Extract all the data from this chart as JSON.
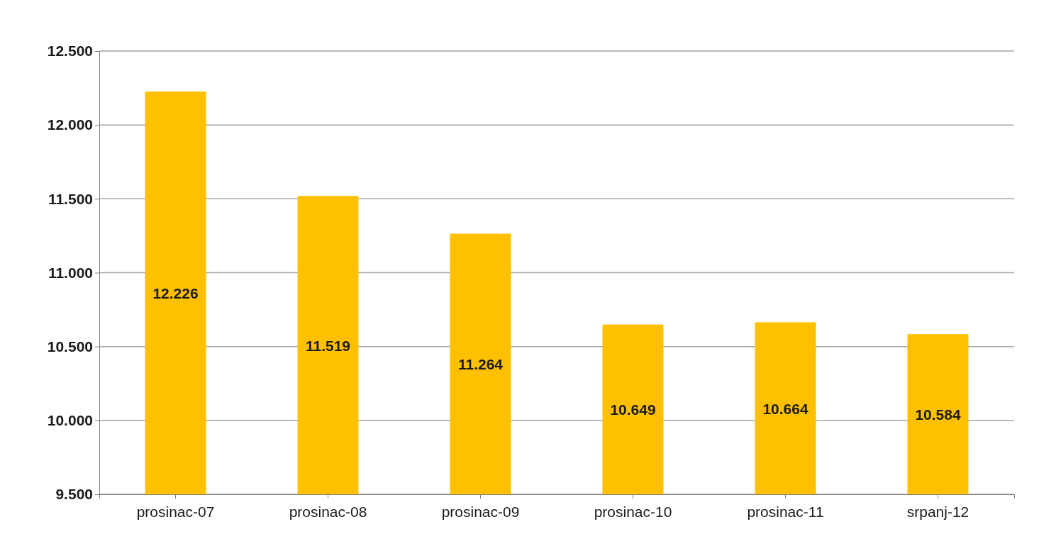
{
  "chart_data": {
    "type": "bar",
    "categories": [
      "prosinac-07",
      "prosinac-08",
      "prosinac-09",
      "prosinac-10",
      "prosinac-11",
      "srpanj-12"
    ],
    "values": [
      12226,
      11519,
      11264,
      10649,
      10664,
      10584
    ],
    "value_labels": [
      "12.226",
      "11.519",
      "11.264",
      "10.649",
      "10.664",
      "10.584"
    ],
    "color": "#ffc000",
    "ylim": [
      9500,
      12500
    ],
    "yticks": [
      {
        "value": 9500,
        "label": "9.500"
      },
      {
        "value": 10000,
        "label": "10.000"
      },
      {
        "value": 10500,
        "label": "10.500"
      },
      {
        "value": 11000,
        "label": "11.000"
      },
      {
        "value": 11500,
        "label": "11.500"
      },
      {
        "value": 12000,
        "label": "12.000"
      },
      {
        "value": 12500,
        "label": "12.500"
      }
    ],
    "grid": "y"
  }
}
